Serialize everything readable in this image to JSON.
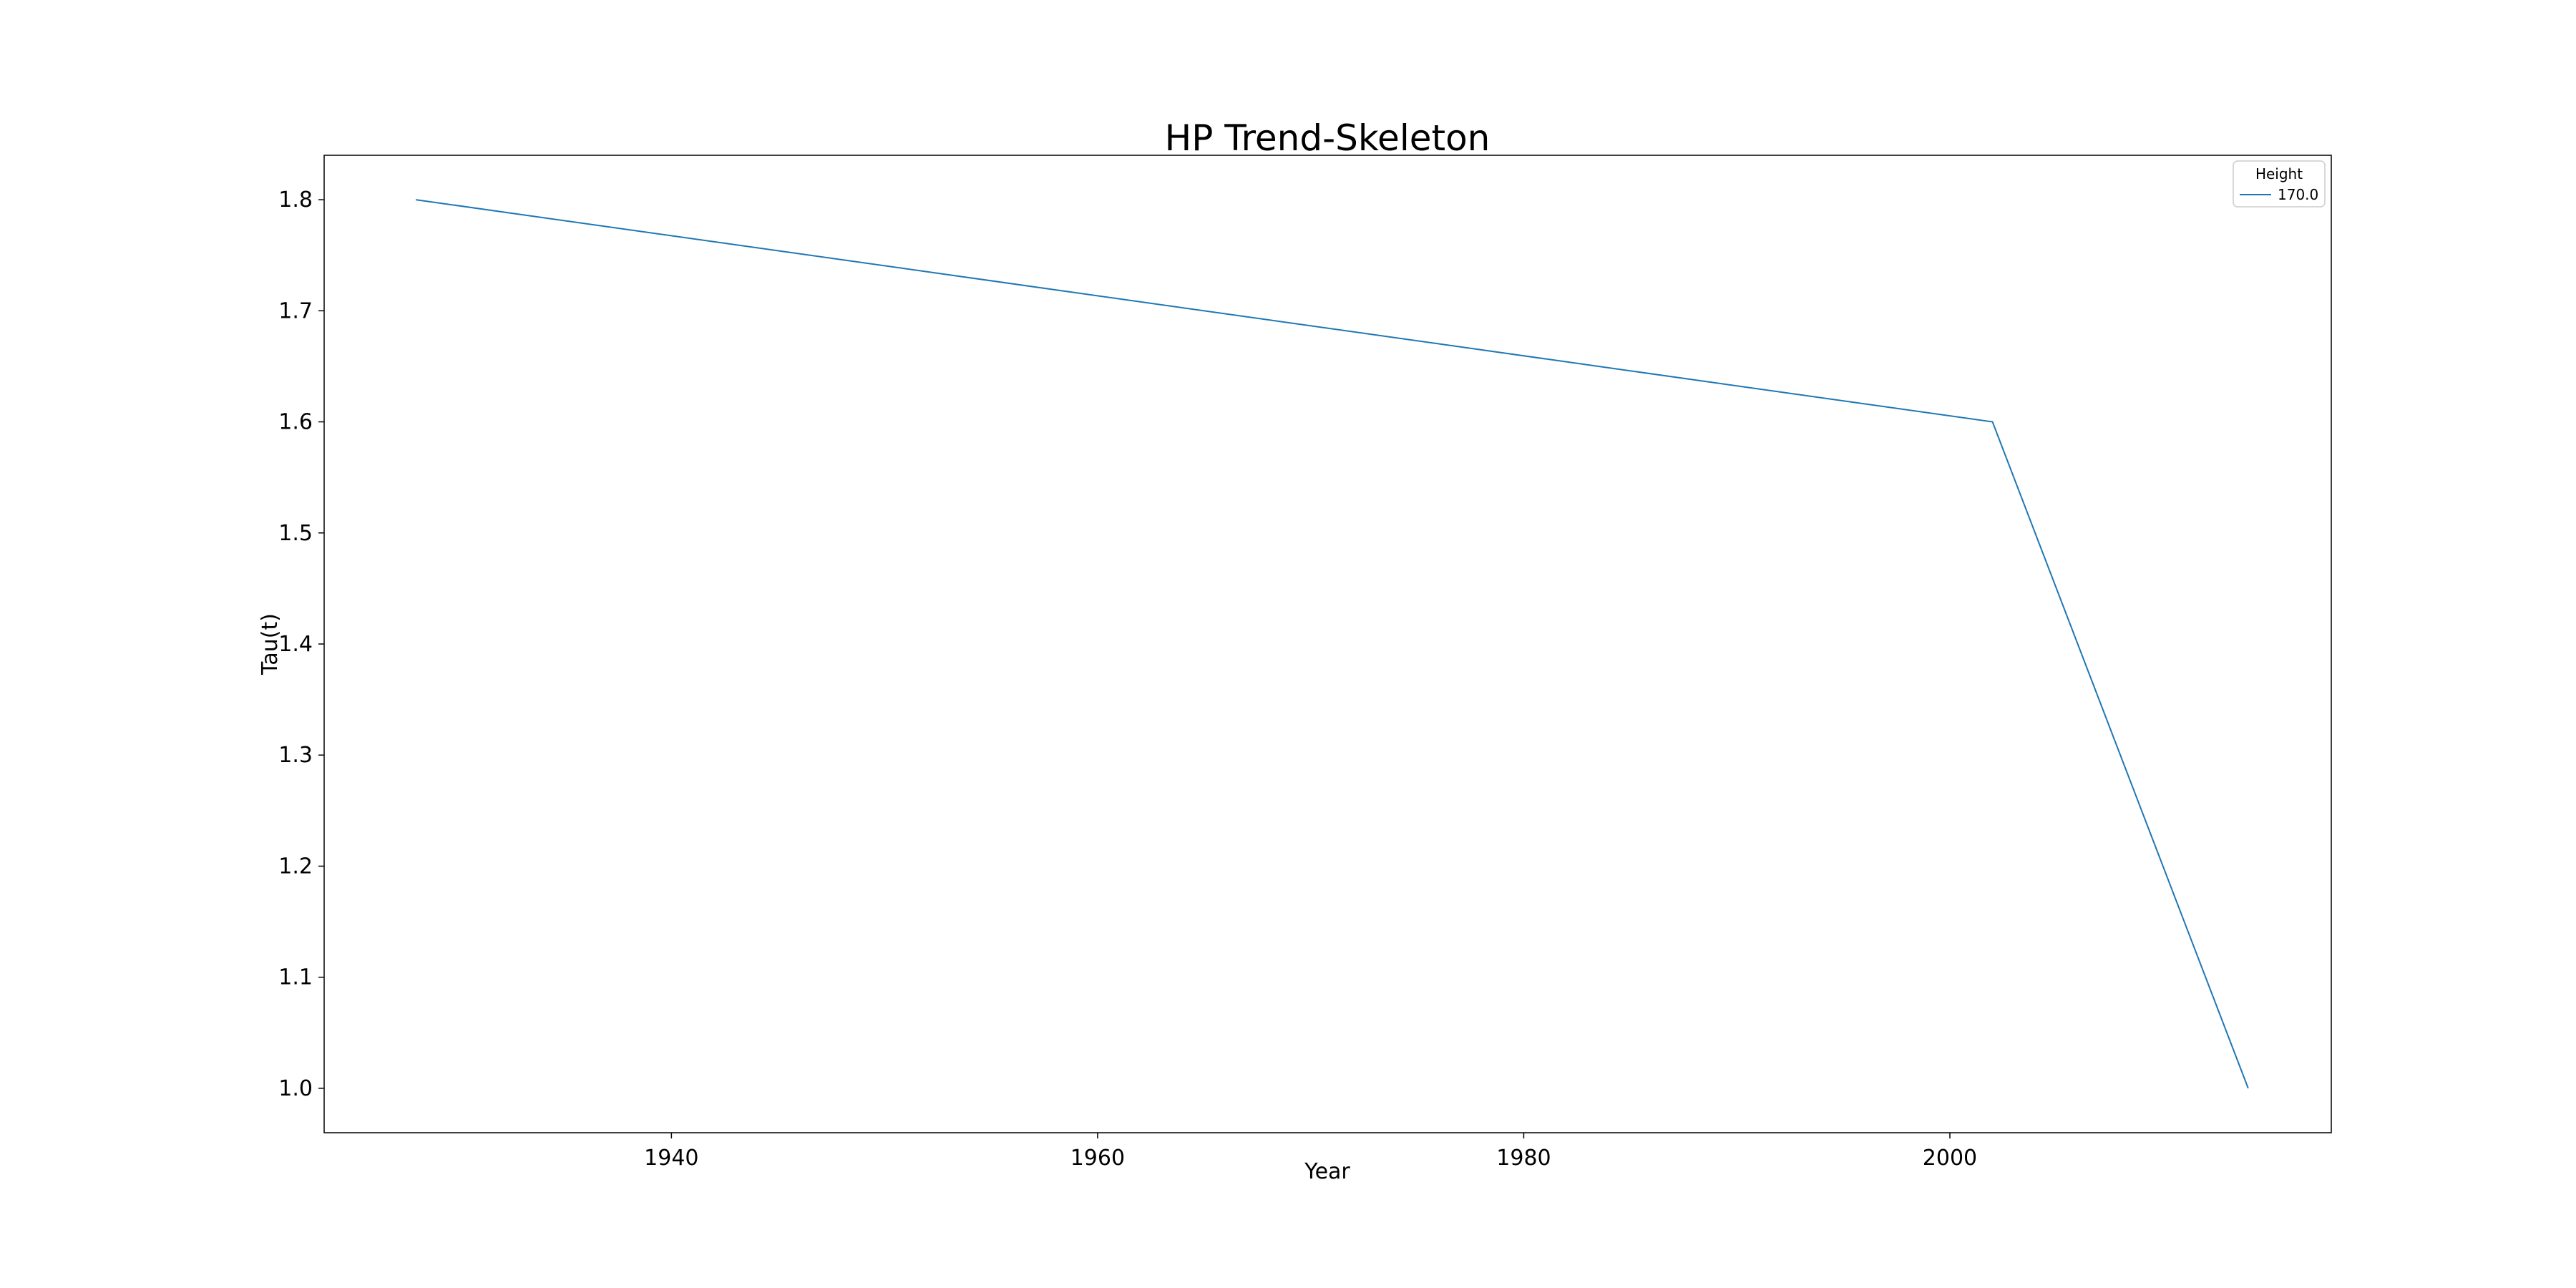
{
  "chart_data": {
    "type": "line",
    "title": "HP Trend-Skeleton",
    "xlabel": "Year",
    "ylabel": "Tau(t)",
    "xlim": [
      1923.7,
      2017.9
    ],
    "ylim": [
      0.96,
      1.84
    ],
    "xticks": [
      1940,
      1960,
      1980,
      2000
    ],
    "xtick_labels": [
      "1940",
      "1960",
      "1980",
      "2000"
    ],
    "yticks": [
      1.0,
      1.1,
      1.2,
      1.3,
      1.4,
      1.5,
      1.6,
      1.7,
      1.8
    ],
    "ytick_labels": [
      "1.0",
      "1.1",
      "1.2",
      "1.3",
      "1.4",
      "1.5",
      "1.6",
      "1.7",
      "1.8"
    ],
    "grid": false,
    "legend": {
      "title": "Height",
      "position": "top-right"
    },
    "series": [
      {
        "name": "170.0",
        "color": "#1f77b4",
        "x": [
          1928,
          2002,
          2014
        ],
        "y": [
          1.8,
          1.6,
          1.0
        ]
      }
    ]
  }
}
